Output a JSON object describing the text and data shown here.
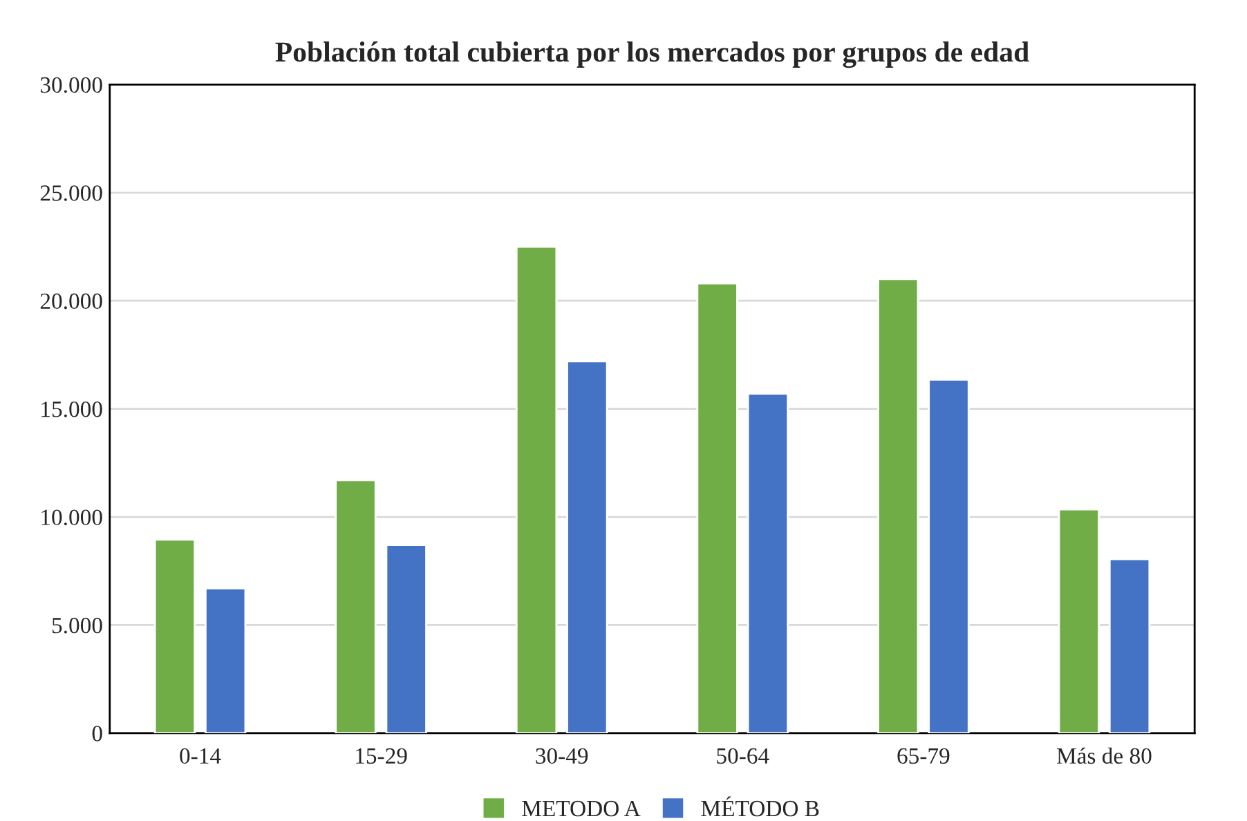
{
  "chart_data": {
    "type": "bar",
    "title": "Población total cubierta por los mercados por grupos de edad",
    "categories": [
      "0-14",
      "15-29",
      "30-49",
      "50-64",
      "65-79",
      "Más de 80"
    ],
    "series": [
      {
        "name": "METODO A",
        "color": "#70ad47",
        "values": [
          8950,
          11700,
          22500,
          20800,
          21000,
          10350
        ]
      },
      {
        "name": "MÉTODO B",
        "color": "#4472c4",
        "values": [
          6700,
          8700,
          17200,
          15700,
          16350,
          8050
        ]
      }
    ],
    "ylim": [
      0,
      30000
    ],
    "yticks": [
      0,
      {
        "value": 5000,
        "label": "5.000"
      },
      {
        "value": 10000,
        "label": "10.000"
      },
      {
        "value": 15000,
        "label": "15.000"
      },
      {
        "value": 20000,
        "label": "20.000"
      },
      {
        "value": 25000,
        "label": "25.000"
      },
      {
        "value": 30000,
        "label": "30.000"
      }
    ],
    "grid": "y",
    "legend": "bottom"
  }
}
